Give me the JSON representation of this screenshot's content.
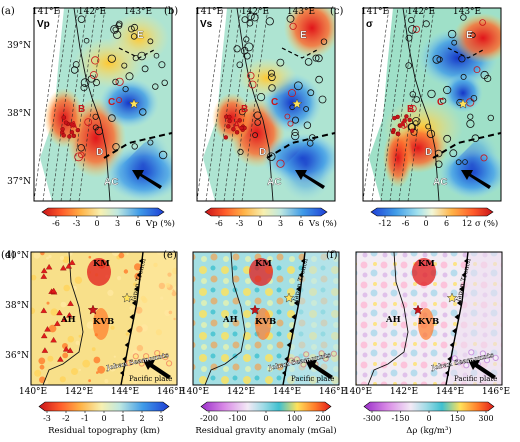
{
  "figure": {
    "top_panels": [
      {
        "id": "a",
        "letter": "(a)",
        "param": "Vp",
        "regions": [
          "E",
          "A",
          "B",
          "C",
          "D",
          "AC"
        ],
        "colorbar": {
          "ticks": [
            "-6",
            "-3",
            "0",
            "3",
            "6"
          ],
          "label": "Vp (%)"
        }
      },
      {
        "id": "b",
        "letter": "(b)",
        "param": "Vs",
        "regions": [
          "E",
          "A",
          "B",
          "C",
          "D",
          "AC"
        ],
        "colorbar": {
          "ticks": [
            "-6",
            "-3",
            "0",
            "3",
            "6"
          ],
          "label": "Vs (%)"
        }
      },
      {
        "id": "c",
        "letter": "(c)",
        "param": "σ",
        "regions": [
          "E",
          "A",
          "B",
          "C",
          "D",
          "AC"
        ],
        "colorbar": {
          "ticks": [
            "-12",
            "-6",
            "0",
            "6",
            "12"
          ],
          "label": "σ (%)"
        }
      }
    ],
    "top_lon_ticks": [
      "141°E",
      "142°E",
      "143°E"
    ],
    "top_lat_ticks": [
      "39°N",
      "38°N",
      "37°N"
    ],
    "bottom_panels": [
      {
        "id": "d",
        "letter": "(d)",
        "colorbar": {
          "ticks": [
            "-3",
            "-2",
            "-1",
            "0",
            "1",
            "2",
            "3"
          ],
          "label": "Residual topography (km)"
        }
      },
      {
        "id": "e",
        "letter": "(e)",
        "colorbar": {
          "ticks": [
            "-200",
            "-100",
            "0",
            "100",
            "200"
          ],
          "label": "Residual gravity anomaly (mGal)"
        }
      },
      {
        "id": "f",
        "letter": "(f)",
        "colorbar": {
          "ticks": [
            "-300",
            "-150",
            "0",
            "150",
            "300"
          ],
          "label": "Δρ (kg/m³)"
        }
      }
    ],
    "bottom_labels": {
      "km": "KM",
      "ah": "AH",
      "kvb": "KVB",
      "trench": "Japan Trench",
      "joban": "Joban Seamounts",
      "pacific": "Pacific plate"
    },
    "bottom_lon_ticks": [
      "140°E",
      "142°E",
      "144°E",
      "146°E"
    ],
    "bottom_lat_ticks": [
      "40°N",
      "38°N",
      "36°N"
    ],
    "colors": {
      "seis": [
        "#1f3fd6",
        "#3f9be8",
        "#8fd6f0",
        "#d8f0e6",
        "#f7f0b0",
        "#ffb347",
        "#ff5a2a",
        "#c8141a"
      ],
      "grav": [
        "#9a2fc9",
        "#d98ae6",
        "#f6f3f8",
        "#a8e0e6",
        "#3fc0d0",
        "#ffe25a",
        "#ff7a2a",
        "#e11b1b"
      ],
      "land": "#ffffff"
    }
  }
}
